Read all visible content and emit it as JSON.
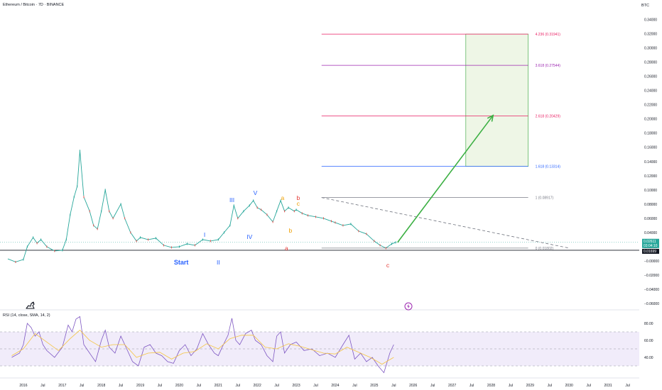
{
  "header": {
    "title": "Ethereum / Bitcoin · 7D · BINANCE",
    "currency": "BTC"
  },
  "rsi_title": "RSI (14, close, SMA, 14, 2)",
  "colors": {
    "price": "#26a69a",
    "price_down": "#ef5350",
    "rsi_line": "#7e57c2",
    "rsi_ma": "#f5c542",
    "arrow": "#3cb043",
    "fib_0": "#787b86",
    "fib_1": "#787b86",
    "fib_1618": "#2962ff",
    "fib_2618": "#e91e63",
    "fib_3618": "#9c27b0",
    "fib_4236": "#e91e63",
    "box_fill": "#eef6e6",
    "box_stroke": "#4caf50",
    "wave_blue": "#2962ff",
    "wave_red": "#e53935",
    "wave_orange": "#ef9f00"
  },
  "chart_data": {
    "type": "line",
    "price_axis_ticks": [
      "0.34000",
      "0.32000",
      "0.30000",
      "0.28000",
      "0.26000",
      "0.24000",
      "0.22000",
      "0.20000",
      "0.18000",
      "0.16000",
      "0.14000",
      "0.12000",
      "0.10000",
      "0.08000",
      "0.06000",
      "0.04000",
      "0.02000",
      "−0.00000",
      "−0.02000",
      "−0.04000",
      "−0.06000"
    ],
    "price_axis_values": [
      0.34,
      0.32,
      0.3,
      0.28,
      0.26,
      0.24,
      0.22,
      0.2,
      0.18,
      0.16,
      0.14,
      0.12,
      0.1,
      0.08,
      0.06,
      0.04,
      0.02,
      0.0,
      -0.02,
      -0.04,
      -0.06
    ],
    "ylim": [
      -0.0645,
      0.3465
    ],
    "xlim": [
      2015.4,
      2031.8
    ],
    "time_ticks": [
      {
        "label": "2016",
        "t": 2016.0
      },
      {
        "label": "Jul",
        "t": 2016.5
      },
      {
        "label": "2017",
        "t": 2017.0
      },
      {
        "label": "Jul",
        "t": 2017.5
      },
      {
        "label": "2018",
        "t": 2018.0
      },
      {
        "label": "Jul",
        "t": 2018.5
      },
      {
        "label": "2019",
        "t": 2019.0
      },
      {
        "label": "Jul",
        "t": 2019.5
      },
      {
        "label": "2020",
        "t": 2020.0
      },
      {
        "label": "Jul",
        "t": 2020.5
      },
      {
        "label": "2021",
        "t": 2021.0
      },
      {
        "label": "Jul",
        "t": 2021.5
      },
      {
        "label": "2022",
        "t": 2022.0
      },
      {
        "label": "Jul",
        "t": 2022.5
      },
      {
        "label": "2023",
        "t": 2023.0
      },
      {
        "label": "Jul",
        "t": 2023.5
      },
      {
        "label": "2024",
        "t": 2024.0
      },
      {
        "label": "Jul",
        "t": 2024.5
      },
      {
        "label": "2025",
        "t": 2025.0
      },
      {
        "label": "Jul",
        "t": 2025.5
      },
      {
        "label": "2026",
        "t": 2026.0
      },
      {
        "label": "Jul",
        "t": 2026.5
      },
      {
        "label": "2027",
        "t": 2027.0
      },
      {
        "label": "Jul",
        "t": 2027.5
      },
      {
        "label": "2028",
        "t": 2028.0
      },
      {
        "label": "Jul",
        "t": 2028.5
      },
      {
        "label": "2029",
        "t": 2029.0
      },
      {
        "label": "Jul",
        "t": 2029.5
      },
      {
        "label": "2030",
        "t": 2030.0
      },
      {
        "label": "Jul",
        "t": 2030.5
      },
      {
        "label": "2031",
        "t": 2031.0
      },
      {
        "label": "Jul",
        "t": 2031.5
      }
    ],
    "price_series": [
      [
        2015.6,
        0.0028
      ],
      [
        2015.8,
        -0.0015
      ],
      [
        2016.0,
        0.002
      ],
      [
        2016.1,
        0.02
      ],
      [
        2016.25,
        0.033
      ],
      [
        2016.35,
        0.025
      ],
      [
        2016.45,
        0.03
      ],
      [
        2016.6,
        0.02
      ],
      [
        2016.8,
        0.014
      ],
      [
        2017.0,
        0.015
      ],
      [
        2017.1,
        0.03
      ],
      [
        2017.2,
        0.065
      ],
      [
        2017.3,
        0.09
      ],
      [
        2017.38,
        0.105
      ],
      [
        2017.45,
        0.155
      ],
      [
        2017.55,
        0.09
      ],
      [
        2017.7,
        0.07
      ],
      [
        2017.8,
        0.05
      ],
      [
        2017.9,
        0.045
      ],
      [
        2018.0,
        0.07
      ],
      [
        2018.1,
        0.1
      ],
      [
        2018.2,
        0.07
      ],
      [
        2018.3,
        0.06
      ],
      [
        2018.5,
        0.08
      ],
      [
        2018.6,
        0.06
      ],
      [
        2018.75,
        0.04
      ],
      [
        2018.9,
        0.028
      ],
      [
        2019.0,
        0.033
      ],
      [
        2019.2,
        0.03
      ],
      [
        2019.4,
        0.032
      ],
      [
        2019.6,
        0.022
      ],
      [
        2019.8,
        0.019
      ],
      [
        2020.0,
        0.02
      ],
      [
        2020.2,
        0.024
      ],
      [
        2020.4,
        0.022
      ],
      [
        2020.6,
        0.03
      ],
      [
        2020.8,
        0.028
      ],
      [
        2021.0,
        0.03
      ],
      [
        2021.15,
        0.04
      ],
      [
        2021.3,
        0.05
      ],
      [
        2021.4,
        0.078
      ],
      [
        2021.5,
        0.06
      ],
      [
        2021.65,
        0.07
      ],
      [
        2021.8,
        0.078
      ],
      [
        2021.9,
        0.085
      ],
      [
        2022.0,
        0.075
      ],
      [
        2022.1,
        0.072
      ],
      [
        2022.25,
        0.065
      ],
      [
        2022.4,
        0.055
      ],
      [
        2022.5,
        0.07
      ],
      [
        2022.6,
        0.085
      ],
      [
        2022.7,
        0.07
      ],
      [
        2022.8,
        0.075
      ],
      [
        2022.95,
        0.07
      ],
      [
        2023.0,
        0.072
      ],
      [
        2023.15,
        0.067
      ],
      [
        2023.3,
        0.064
      ],
      [
        2023.5,
        0.062
      ],
      [
        2023.7,
        0.06
      ],
      [
        2023.9,
        0.056
      ],
      [
        2024.0,
        0.054
      ],
      [
        2024.2,
        0.05
      ],
      [
        2024.4,
        0.052
      ],
      [
        2024.6,
        0.042
      ],
      [
        2024.8,
        0.038
      ],
      [
        2025.0,
        0.028
      ],
      [
        2025.15,
        0.022
      ],
      [
        2025.3,
        0.018
      ],
      [
        2025.45,
        0.024
      ],
      [
        2025.55,
        0.0261
      ]
    ],
    "rsi_axis_ticks": [
      "80.00",
      "60.00",
      "40.00"
    ],
    "rsi_axis_values": [
      80,
      60,
      40
    ],
    "rsi_ylim": [
      18,
      92
    ],
    "rsi_bands": {
      "upper": 70,
      "middle": 50,
      "lower": 30
    },
    "rsi_series": [
      [
        2015.7,
        40
      ],
      [
        2015.9,
        45
      ],
      [
        2016.0,
        55
      ],
      [
        2016.1,
        80
      ],
      [
        2016.2,
        75
      ],
      [
        2016.3,
        65
      ],
      [
        2016.4,
        70
      ],
      [
        2016.5,
        55
      ],
      [
        2016.6,
        48
      ],
      [
        2016.8,
        40
      ],
      [
        2017.0,
        52
      ],
      [
        2017.15,
        78
      ],
      [
        2017.25,
        70
      ],
      [
        2017.35,
        85
      ],
      [
        2017.45,
        88
      ],
      [
        2017.55,
        55
      ],
      [
        2017.7,
        45
      ],
      [
        2017.85,
        35
      ],
      [
        2018.0,
        60
      ],
      [
        2018.1,
        72
      ],
      [
        2018.2,
        52
      ],
      [
        2018.35,
        45
      ],
      [
        2018.5,
        65
      ],
      [
        2018.65,
        50
      ],
      [
        2018.8,
        35
      ],
      [
        2018.95,
        30
      ],
      [
        2019.1,
        52
      ],
      [
        2019.25,
        55
      ],
      [
        2019.4,
        45
      ],
      [
        2019.55,
        42
      ],
      [
        2019.7,
        35
      ],
      [
        2019.85,
        33
      ],
      [
        2020.0,
        48
      ],
      [
        2020.15,
        55
      ],
      [
        2020.3,
        42
      ],
      [
        2020.45,
        50
      ],
      [
        2020.6,
        68
      ],
      [
        2020.75,
        55
      ],
      [
        2020.9,
        45
      ],
      [
        2021.0,
        42
      ],
      [
        2021.1,
        52
      ],
      [
        2021.25,
        66
      ],
      [
        2021.35,
        86
      ],
      [
        2021.45,
        60
      ],
      [
        2021.55,
        55
      ],
      [
        2021.7,
        68
      ],
      [
        2021.85,
        72
      ],
      [
        2021.95,
        60
      ],
      [
        2022.1,
        55
      ],
      [
        2022.25,
        42
      ],
      [
        2022.4,
        35
      ],
      [
        2022.5,
        65
      ],
      [
        2022.6,
        70
      ],
      [
        2022.7,
        45
      ],
      [
        2022.85,
        55
      ],
      [
        2023.0,
        58
      ],
      [
        2023.2,
        48
      ],
      [
        2023.4,
        50
      ],
      [
        2023.6,
        42
      ],
      [
        2023.8,
        45
      ],
      [
        2024.0,
        40
      ],
      [
        2024.2,
        55
      ],
      [
        2024.35,
        66
      ],
      [
        2024.5,
        38
      ],
      [
        2024.65,
        45
      ],
      [
        2024.8,
        35
      ],
      [
        2024.95,
        40
      ],
      [
        2025.1,
        30
      ],
      [
        2025.25,
        22
      ],
      [
        2025.4,
        45
      ],
      [
        2025.5,
        55
      ]
    ],
    "rsi_ma_series": [
      [
        2015.7,
        42
      ],
      [
        2016.0,
        50
      ],
      [
        2016.3,
        68
      ],
      [
        2016.6,
        58
      ],
      [
        2016.9,
        48
      ],
      [
        2017.2,
        62
      ],
      [
        2017.45,
        72
      ],
      [
        2017.7,
        60
      ],
      [
        2018.0,
        52
      ],
      [
        2018.3,
        55
      ],
      [
        2018.6,
        55
      ],
      [
        2018.9,
        40
      ],
      [
        2019.2,
        45
      ],
      [
        2019.5,
        46
      ],
      [
        2019.8,
        38
      ],
      [
        2020.1,
        45
      ],
      [
        2020.4,
        47
      ],
      [
        2020.7,
        56
      ],
      [
        2021.0,
        50
      ],
      [
        2021.3,
        62
      ],
      [
        2021.6,
        66
      ],
      [
        2021.9,
        66
      ],
      [
        2022.2,
        52
      ],
      [
        2022.5,
        50
      ],
      [
        2022.8,
        56
      ],
      [
        2023.1,
        53
      ],
      [
        2023.4,
        49
      ],
      [
        2023.7,
        45
      ],
      [
        2024.0,
        44
      ],
      [
        2024.3,
        52
      ],
      [
        2024.6,
        46
      ],
      [
        2024.9,
        40
      ],
      [
        2025.2,
        32
      ],
      [
        2025.5,
        40
      ]
    ],
    "fib_levels": [
      {
        "label": "4.236 (0.31941)",
        "value": 0.31941,
        "color": "#e91e63"
      },
      {
        "label": "3.618 (0.27544)",
        "value": 0.27544,
        "color": "#9c27b0"
      },
      {
        "label": "2.618 (0.20429)",
        "value": 0.20429,
        "color": "#e91e63"
      },
      {
        "label": "1.618 (0.13314)",
        "value": 0.13314,
        "color": "#2962ff"
      },
      {
        "label": "1 (0.08917)",
        "value": 0.08917,
        "color": "#787b86"
      },
      {
        "label": "0 (0.01802)",
        "value": 0.01802,
        "color": "#787b86"
      }
    ],
    "fib_range": [
      2023.65,
      2028.95
    ],
    "target_box": {
      "t0": 2027.35,
      "t1": 2028.95,
      "v0": 0.13314,
      "v1": 0.31941
    },
    "projection_arrow": {
      "from": [
        2025.6,
        0.0261
      ],
      "to": [
        2028.05,
        0.205
      ]
    },
    "dashed_trend": {
      "from": [
        2023.65,
        0.0892
      ],
      "to": [
        2030.0,
        0.018
      ]
    },
    "support_line": 0.015,
    "wave_labels": [
      {
        "text": "Start",
        "t": 2020.05,
        "v": -0.005,
        "color": "#2962ff"
      },
      {
        "text": "I",
        "t": 2020.65,
        "v": 0.034,
        "color": "#2962ff"
      },
      {
        "text": "II",
        "t": 2021.0,
        "v": -0.005,
        "color": "#2962ff"
      },
      {
        "text": "III",
        "t": 2021.35,
        "v": 0.083,
        "color": "#2962ff"
      },
      {
        "text": "IV",
        "t": 2021.8,
        "v": 0.031,
        "color": "#2962ff"
      },
      {
        "text": "V",
        "t": 2021.95,
        "v": 0.093,
        "color": "#2962ff"
      },
      {
        "text": "a",
        "t": 2022.75,
        "v": 0.015,
        "color": "#e53935"
      },
      {
        "text": "a",
        "t": 2022.65,
        "v": 0.086,
        "color": "#ef9f00"
      },
      {
        "text": "b",
        "t": 2022.85,
        "v": 0.04,
        "color": "#ef9f00"
      },
      {
        "text": "c",
        "t": 2023.05,
        "v": 0.078,
        "color": "#ef9f00"
      },
      {
        "text": "b",
        "t": 2023.05,
        "v": 0.086,
        "color": "#e53935"
      },
      {
        "text": "c",
        "t": 2025.35,
        "v": -0.009,
        "color": "#e53935"
      }
    ],
    "price_tags": [
      {
        "label": "0.02611",
        "value": 0.02611,
        "bg": "#26a69a"
      },
      {
        "label": "03:04:10",
        "value": 0.02611,
        "bg": "#26a69a",
        "sub": true
      },
      {
        "label": "0.01699",
        "value": 0.01699,
        "bg": "#131722"
      }
    ]
  }
}
